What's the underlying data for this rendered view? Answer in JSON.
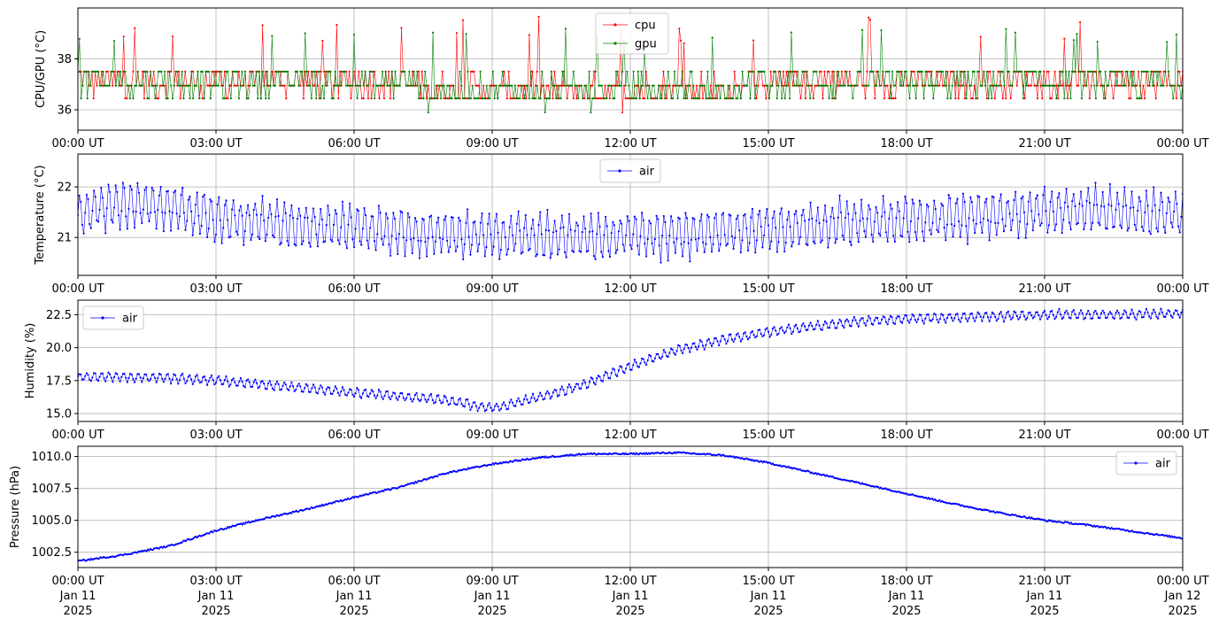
{
  "chart_data": [
    {
      "type": "line",
      "ylabel": "CPU/GPU (°C)",
      "ylim": [
        35.2,
        40.0
      ],
      "yticks": [
        36,
        38
      ],
      "grid": true,
      "legend_placement": "upper-center",
      "x_ticks": [
        "00:00 UT",
        "03:00 UT",
        "06:00 UT",
        "09:00 UT",
        "12:00 UT",
        "15:00 UT",
        "18:00 UT",
        "21:00 UT",
        "00:00 UT"
      ],
      "x_hours_range": [
        0,
        24
      ],
      "series": [
        {
          "name": "cpu",
          "color": "#ff0000",
          "values_hint": "levels 36.45 / 36.95 / 37.5, sporadic spikes to 38.6-39.7, dips to 35.9"
        },
        {
          "name": "gpu",
          "color": "#008000",
          "values_hint": "levels 36.45 / 36.95 / 37.5, sporadic spikes to 38.6-39.2, dips to 35.9"
        }
      ]
    },
    {
      "type": "line",
      "ylabel": "Temperature (°C)",
      "ylim": [
        20.25,
        22.65
      ],
      "yticks": [
        21,
        22
      ],
      "grid": true,
      "legend_placement": "upper-center",
      "x_ticks": [
        "00:00 UT",
        "03:00 UT",
        "06:00 UT",
        "09:00 UT",
        "12:00 UT",
        "15:00 UT",
        "18:00 UT",
        "21:00 UT",
        "00:00 UT"
      ],
      "series": [
        {
          "name": "air",
          "color": "#0000ff",
          "center_by_hour": [
            21.5,
            21.65,
            21.6,
            21.4,
            21.3,
            21.25,
            21.2,
            21.1,
            21.05,
            21.05,
            21.0,
            21.0,
            21.05,
            21.05,
            21.1,
            21.2,
            21.25,
            21.3,
            21.35,
            21.4,
            21.45,
            21.5,
            21.55,
            21.5,
            21.45
          ],
          "oscillation_amplitude": 0.5
        }
      ]
    },
    {
      "type": "line",
      "ylabel": "Humidity (%)",
      "ylim": [
        14.4,
        23.6
      ],
      "yticks": [
        15.0,
        17.5,
        20.0,
        22.5
      ],
      "grid": true,
      "legend_placement": "upper-left",
      "x_ticks": [
        "00:00 UT",
        "03:00 UT",
        "06:00 UT",
        "09:00 UT",
        "12:00 UT",
        "15:00 UT",
        "18:00 UT",
        "21:00 UT",
        "00:00 UT"
      ],
      "series": [
        {
          "name": "air",
          "color": "#0000ff",
          "center_by_hour": [
            17.8,
            17.8,
            17.7,
            17.5,
            17.2,
            16.9,
            16.6,
            16.3,
            16.0,
            15.4,
            16.2,
            17.2,
            18.6,
            19.8,
            20.6,
            21.2,
            21.6,
            22.0,
            22.2,
            22.3,
            22.4,
            22.5,
            22.5,
            22.5,
            22.6
          ],
          "oscillation_amplitude": 0.4
        }
      ]
    },
    {
      "type": "line",
      "ylabel": "Pressure (hPa)",
      "ylim": [
        1001.3,
        1010.8
      ],
      "yticks": [
        1002.5,
        1005.0,
        1007.5,
        1010.0
      ],
      "grid": true,
      "legend_placement": "upper-right",
      "x_ticks": [
        "00:00 UT\nJan 11\n2025",
        "03:00 UT\nJan 11\n2025",
        "06:00 UT\nJan 11\n2025",
        "09:00 UT\nJan 11\n2025",
        "12:00 UT\nJan 11\n2025",
        "15:00 UT\nJan 11\n2025",
        "18:00 UT\nJan 11\n2025",
        "21:00 UT\nJan 11\n2025",
        "00:00 UT\nJan 12\n2025"
      ],
      "series": [
        {
          "name": "air",
          "color": "#0000ff",
          "center_by_hour": [
            1001.8,
            1002.3,
            1003.0,
            1004.2,
            1005.1,
            1005.9,
            1006.8,
            1007.6,
            1008.7,
            1009.4,
            1009.9,
            1010.2,
            1010.2,
            1010.3,
            1010.1,
            1009.5,
            1008.7,
            1007.9,
            1007.1,
            1006.3,
            1005.6,
            1005.0,
            1004.6,
            1004.1,
            1003.6
          ],
          "noise": 0.12
        }
      ]
    }
  ]
}
